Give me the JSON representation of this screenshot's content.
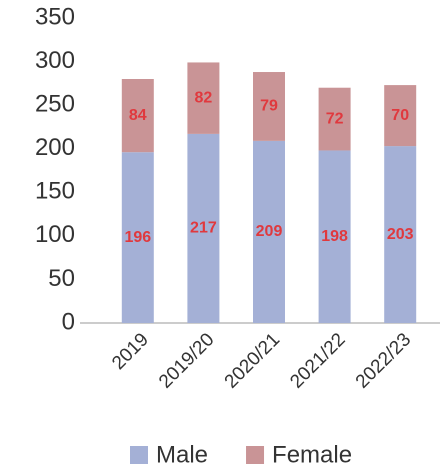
{
  "chart_data": {
    "type": "stacked_bar",
    "categories": [
      "2019",
      "2019/20",
      "2020/21",
      "2021/22",
      "2022/23"
    ],
    "series": [
      {
        "name": "Male",
        "color": "#a4b0d6",
        "values": [
          196,
          217,
          209,
          198,
          203
        ]
      },
      {
        "name": "Female",
        "color": "#c99496",
        "values": [
          84,
          82,
          79,
          72,
          70
        ]
      }
    ],
    "ylim": [
      0,
      350
    ],
    "yticks": [
      0,
      50,
      100,
      150,
      200,
      250,
      300,
      350
    ],
    "grid": false,
    "legend": "bottom",
    "label_color": "#e0393e"
  }
}
